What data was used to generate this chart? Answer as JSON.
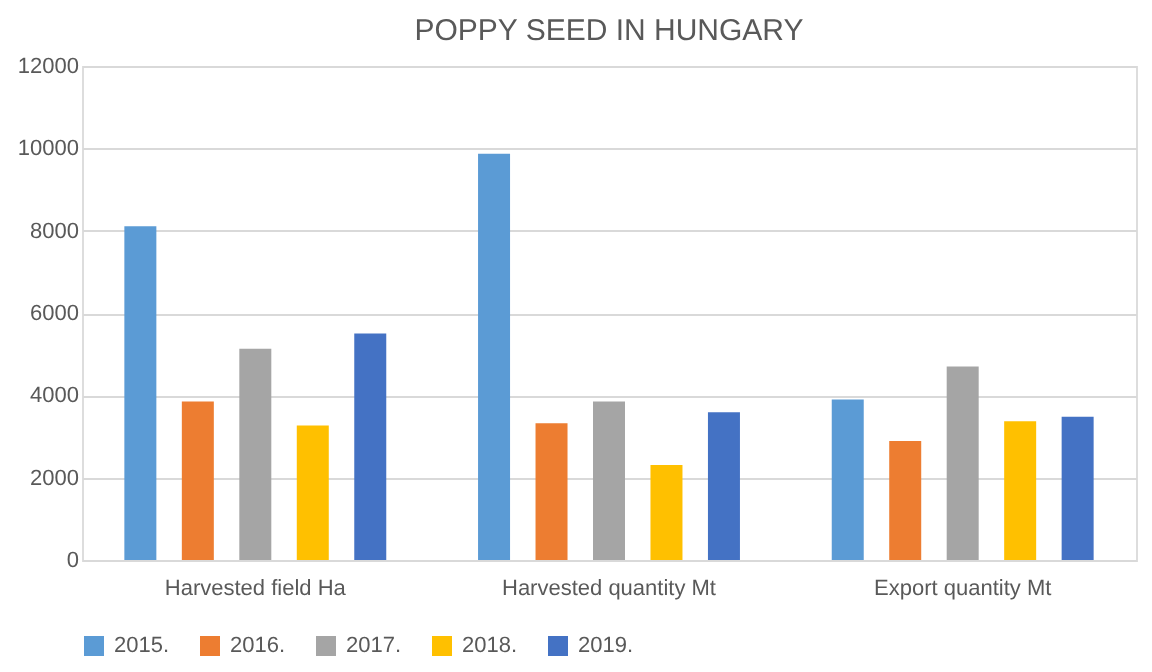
{
  "chart_data": {
    "type": "bar",
    "title": "POPPY SEED IN HUNGARY",
    "categories": [
      "Harvested field Ha",
      "Harvested quantity Mt",
      "Export quantity Mt"
    ],
    "series": [
      {
        "name": "2015.",
        "color": "#5b9bd5",
        "values": [
          8110,
          9870,
          3900
        ]
      },
      {
        "name": "2016.",
        "color": "#ed7d31",
        "values": [
          3850,
          3320,
          2890
        ]
      },
      {
        "name": "2017.",
        "color": "#a5a5a5",
        "values": [
          5130,
          3850,
          4700
        ]
      },
      {
        "name": "2018.",
        "color": "#ffc000",
        "values": [
          3270,
          2310,
          3370
        ]
      },
      {
        "name": "2019.",
        "color": "#4472c4",
        "values": [
          5500,
          3590,
          3480
        ]
      }
    ],
    "ylim": [
      0,
      12000
    ],
    "yticks": [
      0,
      2000,
      4000,
      6000,
      8000,
      10000,
      12000
    ],
    "grid": "y",
    "legend": "bottom"
  }
}
